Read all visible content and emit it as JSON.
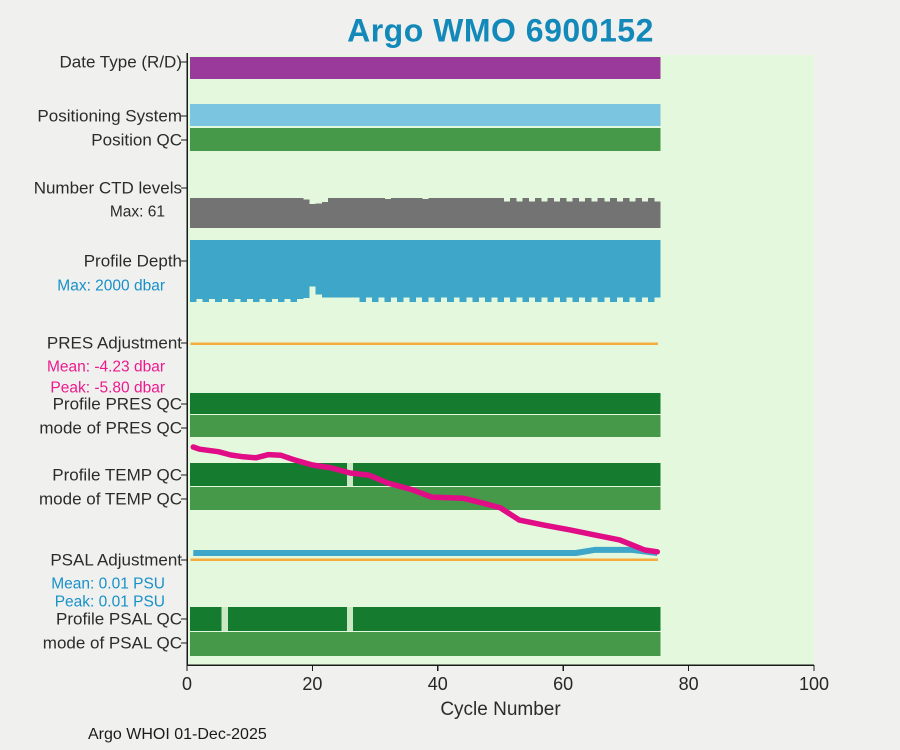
{
  "header": {
    "title": "Argo WMO 6900152"
  },
  "page": {
    "footer": "Argo WHOI 01-Dec-2025"
  },
  "labels": [
    {
      "text": "Date Type (R/D)"
    },
    {
      "text": "Positioning System"
    },
    {
      "text": "Position QC"
    },
    {
      "text": "Number CTD levels"
    },
    {
      "text": "Max: 61"
    },
    {
      "text": "Profile Depth"
    },
    {
      "text": "Max: 2000 dbar"
    },
    {
      "text": "PRES Adjustment"
    },
    {
      "text": "Mean: -4.23 dbar"
    },
    {
      "text": "Peak: -5.80 dbar"
    },
    {
      "text": "Profile PRES QC"
    },
    {
      "text": "mode of PRES QC"
    },
    {
      "text": "Profile TEMP QC"
    },
    {
      "text": "mode of TEMP QC"
    },
    {
      "text": "PSAL Adjustment"
    },
    {
      "text": "Mean: 0.01 PSU"
    },
    {
      "text": "Peak: 0.01 PSU"
    },
    {
      "text": "Profile PSAL QC"
    },
    {
      "text": "mode of PSAL QC"
    }
  ],
  "palette": {
    "fig_bg": "#f0f0ef",
    "plot_bg": "#e3f8dc",
    "axis": "#1a1a1a",
    "title": "#1389ba",
    "label_text": "#2b2b2b",
    "sub_blue_text": "#1791c8",
    "sub_magenta_text": "#ec1a8d",
    "purple": "#9a3a9b",
    "light_blue": "#7cc5e0",
    "green_mid": "#47994a",
    "green_dark": "#157b2e",
    "gray": "#737373",
    "depth_blue": "#3ea6c8",
    "orange": "#f5ac3c",
    "magenta_line": "#e00d86",
    "gap_green": "#cbe7c4"
  },
  "chart_data": {
    "type": "bar",
    "subtype": "multi-row-status-timeline",
    "title": "Argo WMO 6900152",
    "xlabel": "Cycle Number",
    "xlim": [
      0,
      100
    ],
    "xticks": [
      0,
      20,
      40,
      60,
      80,
      100
    ],
    "n_cycles": 75,
    "grid": false,
    "legend": false,
    "rows": [
      {
        "id": "date_type",
        "label": "Date Type (R/D)",
        "color": "purple"
      },
      {
        "id": "positioning_system",
        "label": "Positioning System",
        "color": "light_blue"
      },
      {
        "id": "position_qc",
        "label": "Position QC",
        "color": "green_mid"
      },
      {
        "id": "ctd_levels",
        "label": "Number CTD levels",
        "color": "gray"
      },
      {
        "id": "profile_depth",
        "label": "Profile Depth",
        "color": "depth_blue"
      },
      {
        "id": "pres_adjustment_zero",
        "label": "PRES Adjustment",
        "color": "orange"
      },
      {
        "id": "profile_pres_qc",
        "label": "Profile PRES QC",
        "color": "green_dark"
      },
      {
        "id": "mode_pres_qc",
        "label": "mode of PRES QC",
        "color": "green_mid"
      },
      {
        "id": "profile_temp_qc",
        "label": "Profile TEMP QC",
        "color": "green_dark"
      },
      {
        "id": "mode_temp_qc",
        "label": "mode of TEMP QC",
        "color": "green_mid"
      },
      {
        "id": "psal_adjustment_zero",
        "label": "PSAL Adjustment",
        "color": "orange"
      },
      {
        "id": "profile_psal_qc",
        "label": "Profile PSAL QC",
        "color": "green_dark"
      },
      {
        "id": "mode_psal_qc",
        "label": "mode of PSAL QC",
        "color": "green_mid"
      }
    ],
    "ctd_levels": {
      "label": "Number CTD levels",
      "max": 61,
      "values": [
        61,
        61,
        61,
        61,
        61,
        61,
        61,
        61,
        61,
        61,
        61,
        61,
        61,
        61,
        61,
        61,
        61,
        61,
        58,
        49,
        50,
        53,
        61,
        61,
        61,
        61,
        61,
        61,
        61,
        61,
        61,
        59,
        61,
        61,
        61,
        61,
        61,
        59,
        61,
        61,
        61,
        61,
        61,
        61,
        61,
        61,
        61,
        61,
        61,
        61,
        54,
        61,
        54,
        61,
        54,
        61,
        54,
        61,
        54,
        61,
        54,
        61,
        54,
        61,
        54,
        61,
        54,
        61,
        54,
        61,
        54,
        61,
        54,
        61,
        54
      ]
    },
    "profile_depth": {
      "label": "Profile Depth",
      "max_dbar": 2000,
      "values": [
        2000,
        1900,
        2000,
        1900,
        2000,
        1900,
        2000,
        1900,
        2000,
        1900,
        2000,
        1900,
        2000,
        1900,
        2000,
        1900,
        2000,
        1900,
        1870,
        1500,
        1760,
        1850,
        1850,
        1850,
        1850,
        1850,
        1850,
        2000,
        1850,
        2000,
        1850,
        2000,
        1850,
        2000,
        1850,
        2000,
        1850,
        2000,
        1850,
        2000,
        1850,
        2000,
        1850,
        2000,
        1850,
        2000,
        1850,
        2000,
        1850,
        2000,
        1850,
        2000,
        1850,
        2000,
        1850,
        2000,
        1850,
        2000,
        1850,
        2000,
        1850,
        2000,
        1850,
        2000,
        1850,
        2000,
        1850,
        2000,
        1850,
        2000,
        1850,
        2000,
        1850,
        2000,
        1850
      ]
    },
    "pres_adjustment": {
      "mean_dbar": -4.23,
      "peak_dbar": -5.8,
      "points": [
        [
          1,
          -2.89
        ],
        [
          2,
          -2.95
        ],
        [
          5,
          -3.02
        ],
        [
          7,
          -3.11
        ],
        [
          9,
          -3.16
        ],
        [
          11,
          -3.19
        ],
        [
          13,
          -3.1
        ],
        [
          15,
          -3.12
        ],
        [
          17,
          -3.24
        ],
        [
          20,
          -3.39
        ],
        [
          23,
          -3.47
        ],
        [
          26,
          -3.61
        ],
        [
          29,
          -3.67
        ],
        [
          32,
          -3.89
        ],
        [
          36,
          -4.08
        ],
        [
          39,
          -4.28
        ],
        [
          44,
          -4.31
        ],
        [
          47,
          -4.44
        ],
        [
          50,
          -4.58
        ],
        [
          53,
          -4.92
        ],
        [
          57,
          -5.06
        ],
        [
          61,
          -5.19
        ],
        [
          65,
          -5.33
        ],
        [
          69,
          -5.47
        ],
        [
          73,
          -5.75
        ],
        [
          75,
          -5.8
        ]
      ]
    },
    "psal_adjustment": {
      "mean_psu": 0.01,
      "peak_psu": 0.01,
      "points": [
        [
          1,
          0.01
        ],
        [
          62,
          0.01
        ],
        [
          65,
          0.0145
        ],
        [
          71,
          0.0145
        ],
        [
          74,
          0.011
        ],
        [
          75,
          0.01
        ]
      ]
    },
    "qc_gap_cycles": {
      "temp": [
        26
      ],
      "psal": [
        6,
        26
      ]
    }
  }
}
